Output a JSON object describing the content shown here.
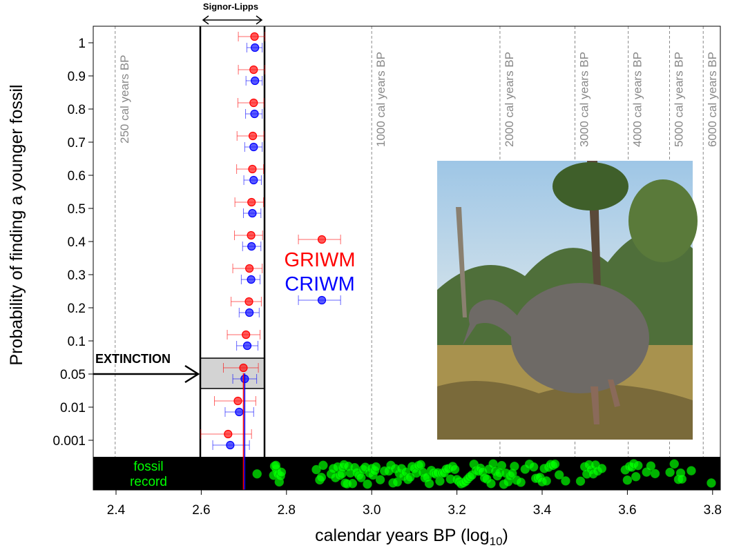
{
  "chart_data": {
    "type": "scatter",
    "xlabel": "calendar years BP (log",
    "xlabel_sub": "10",
    "xlabel_end": ")",
    "ylabel": "Probability of finding a younger fossil",
    "xlim": [
      2.35,
      3.84
    ],
    "x_ticks": [
      "2.4",
      "2.6",
      "2.8",
      "3.0",
      "3.2",
      "3.4",
      "3.6",
      "3.8"
    ],
    "y_categories": [
      "1",
      "0.9",
      "0.8",
      "0.7",
      "0.6",
      "0.5",
      "0.4",
      "0.3",
      "0.2",
      "0.1",
      "0.05",
      "0.01",
      "0.001"
    ],
    "series": [
      {
        "name": "GRIWM",
        "color": "#ff0000",
        "values": [
          2.725,
          2.723,
          2.723,
          2.721,
          2.72,
          2.718,
          2.717,
          2.713,
          2.712,
          2.705,
          2.699,
          2.686,
          2.663
        ],
        "lower": [
          2.687,
          2.687,
          2.686,
          2.684,
          2.683,
          2.679,
          2.678,
          2.674,
          2.67,
          2.661,
          2.652,
          2.631,
          2.599
        ],
        "upper": [
          2.749,
          2.749,
          2.747,
          2.747,
          2.746,
          2.746,
          2.744,
          2.743,
          2.741,
          2.738,
          2.734,
          2.728,
          2.718
        ]
      },
      {
        "name": "CRIWM",
        "color": "#0000ff",
        "values": [
          2.726,
          2.726,
          2.725,
          2.723,
          2.723,
          2.72,
          2.718,
          2.717,
          2.713,
          2.708,
          2.702,
          2.689,
          2.668
        ],
        "lower": [
          2.707,
          2.705,
          2.704,
          2.702,
          2.7,
          2.699,
          2.697,
          2.694,
          2.689,
          2.683,
          2.674,
          2.656,
          2.627
        ],
        "upper": [
          2.743,
          2.743,
          2.743,
          2.743,
          2.741,
          2.74,
          2.74,
          2.738,
          2.736,
          2.733,
          2.73,
          2.723,
          2.713
        ]
      }
    ],
    "legend": {
      "point": 2.883,
      "lower": 2.828,
      "upper": 2.927,
      "items": [
        "GRIWM",
        "CRIWM"
      ]
    },
    "extinction_lines": {
      "GRIWM": 2.699,
      "CRIWM": 2.702
    },
    "signor_lipps": {
      "label": "Signor-Lipps",
      "range": [
        2.598,
        2.749
      ]
    },
    "extinction_label": "EXTINCTION",
    "reference_lines": [
      {
        "x": 2.398,
        "label": "250 cal years BP"
      },
      {
        "x": 3.0,
        "label": "1000 cal years BP"
      },
      {
        "x": 3.301,
        "label": "2000 cal years BP"
      },
      {
        "x": 3.477,
        "label": "3000 cal years BP"
      },
      {
        "x": 3.602,
        "label": "4000 cal years BP"
      },
      {
        "x": 3.699,
        "label": "5000 cal years BP"
      },
      {
        "x": 3.778,
        "label": "6000 cal years BP"
      }
    ],
    "fossil_label": [
      "fossil",
      "record"
    ],
    "fossil_color": "#00ff00",
    "fossil_record": [
      2.731,
      2.77,
      2.772,
      2.776,
      2.778,
      2.78,
      2.775,
      2.783,
      2.786,
      2.788,
      2.87,
      2.878,
      2.882,
      2.886,
      2.905,
      2.91,
      2.915,
      2.92,
      2.925,
      2.93,
      2.932,
      2.935,
      2.938,
      2.942,
      2.945,
      2.95,
      2.955,
      2.96,
      2.965,
      2.97,
      2.975,
      2.98,
      2.985,
      2.99,
      2.995,
      3.0,
      3.003,
      3.007,
      3.01,
      3.02,
      3.03,
      3.04,
      3.045,
      3.05,
      3.055,
      3.06,
      3.065,
      3.07,
      3.075,
      3.08,
      3.085,
      3.09,
      3.095,
      3.1,
      3.105,
      3.11,
      3.115,
      3.12,
      3.125,
      3.13,
      3.135,
      3.14,
      3.145,
      3.15,
      3.155,
      3.16,
      3.165,
      3.17,
      3.175,
      3.18,
      3.185,
      3.19,
      3.195,
      3.2,
      3.205,
      3.21,
      3.215,
      3.22,
      3.225,
      3.23,
      3.235,
      3.24,
      3.245,
      3.25,
      3.255,
      3.26,
      3.265,
      3.27,
      3.275,
      3.28,
      3.285,
      3.29,
      3.295,
      3.3,
      3.305,
      3.31,
      3.315,
      3.32,
      3.325,
      3.33,
      3.335,
      3.34,
      3.35,
      3.36,
      3.37,
      3.38,
      3.385,
      3.39,
      3.395,
      3.4,
      3.405,
      3.41,
      3.415,
      3.42,
      3.425,
      3.43,
      3.44,
      3.455,
      3.49,
      3.5,
      3.505,
      3.51,
      3.515,
      3.52,
      3.525,
      3.53,
      3.54,
      3.595,
      3.6,
      3.605,
      3.61,
      3.615,
      3.62,
      3.625,
      3.645,
      3.655,
      3.665,
      3.7,
      3.71,
      3.72,
      3.725,
      3.728,
      3.75,
      3.797
    ]
  },
  "photo": {
    "subject": "moa-illustration"
  }
}
